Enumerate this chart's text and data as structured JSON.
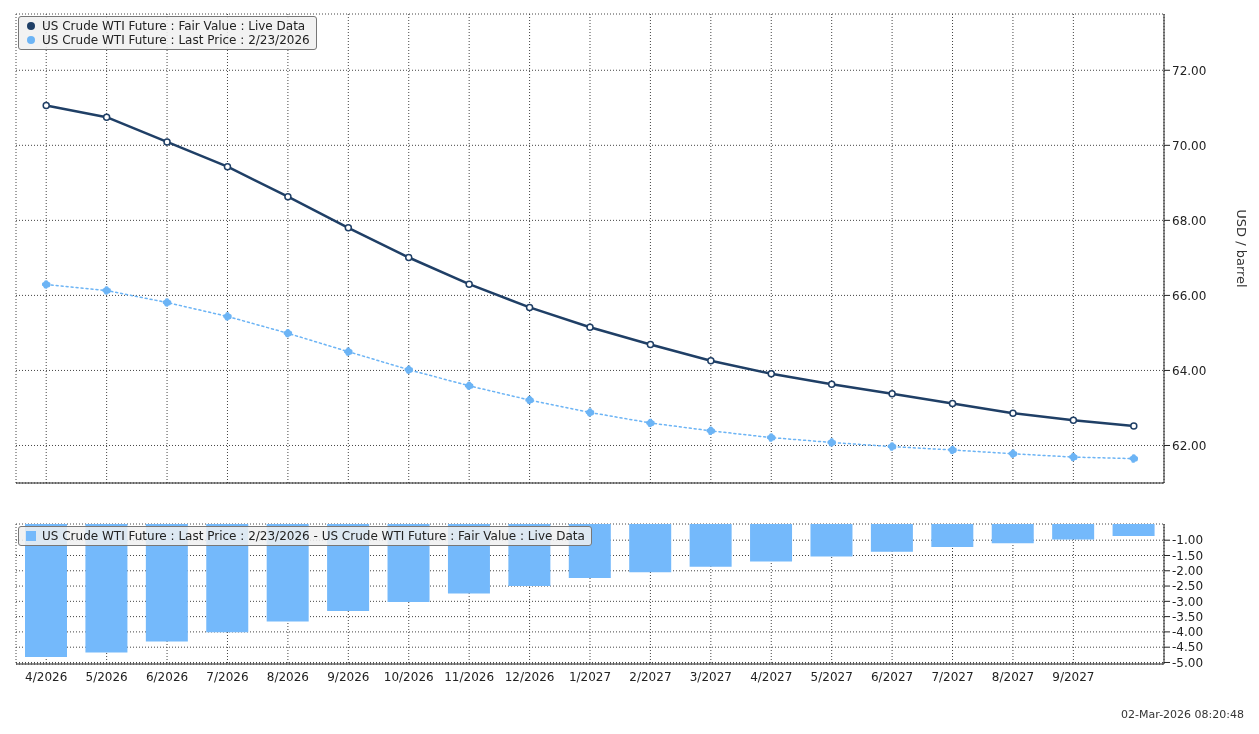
{
  "chart_data": [
    {
      "type": "line",
      "ylabel": "USD / barrel",
      "categories": [
        "4/2026",
        "5/2026",
        "6/2026",
        "7/2026",
        "8/2026",
        "9/2026",
        "10/2026",
        "11/2026",
        "12/2026",
        "1/2027",
        "2/2027",
        "3/2027",
        "4/2027",
        "5/2027",
        "6/2027",
        "7/2027",
        "8/2027",
        "9/2027",
        null
      ],
      "series": [
        {
          "name": "US Crude WTI Future : Fair Value : Live Data",
          "color": "#1f3f66",
          "line_style": "solid",
          "values": [
            71.06,
            70.75,
            70.09,
            69.43,
            68.63,
            67.8,
            67.01,
            66.3,
            65.68,
            65.15,
            64.69,
            64.26,
            63.91,
            63.63,
            63.38,
            63.12,
            62.86,
            62.67,
            62.52
          ]
        },
        {
          "name": "US Crude WTI Future : Last Price : 2/23/2026",
          "color": "#6cb4f5",
          "line_style": "dotted",
          "values": [
            66.29,
            66.13,
            65.81,
            65.44,
            64.99,
            64.5,
            64.02,
            63.59,
            63.21,
            62.88,
            62.6,
            62.39,
            62.21,
            62.08,
            61.97,
            61.88,
            61.78,
            61.69,
            61.65
          ]
        }
      ],
      "ylim": [
        61,
        73.5
      ],
      "yticks": [
        {
          "value": 62,
          "label": "62.00"
        },
        {
          "value": 64,
          "label": "64.00"
        },
        {
          "value": 66,
          "label": "66.00"
        },
        {
          "value": 68,
          "label": "68.00"
        },
        {
          "value": 70,
          "label": "70.00"
        },
        {
          "value": 72,
          "label": "72.00"
        }
      ],
      "grid": true,
      "legend": "top left",
      "marker": "circle",
      "tick_labels": "y"
    },
    {
      "type": "bar",
      "categories": [
        "4/2026",
        "5/2026",
        "6/2026",
        "7/2026",
        "8/2026",
        "9/2026",
        "10/2026",
        "11/2026",
        "12/2026",
        "1/2027",
        "2/2027",
        "3/2027",
        "4/2027",
        "5/2027",
        "6/2027",
        "7/2027",
        "8/2027",
        "9/2027",
        null
      ],
      "series": [
        {
          "name": "US Crude WTI Future : Last Price : 2/23/2026 - US Crude WTI Future : Fair Value : Live Data",
          "color": "#74b9fb",
          "values": [
            -4.82,
            -4.67,
            -4.31,
            -4.01,
            -3.66,
            -3.32,
            -3.02,
            -2.74,
            -2.5,
            -2.24,
            -2.05,
            -1.87,
            -1.7,
            -1.53,
            -1.38,
            -1.22,
            -1.1,
            -0.98,
            -0.86
          ]
        }
      ],
      "ylim": [
        -5.05,
        -0.47
      ],
      "yticks": [
        {
          "value": -1,
          "label": "-1.00"
        },
        {
          "value": -1.5,
          "label": "-1.50"
        },
        {
          "value": -2,
          "label": "-2.00"
        },
        {
          "value": -2.5,
          "label": "-2.50"
        },
        {
          "value": -3,
          "label": "-3.00"
        },
        {
          "value": -3.5,
          "label": "-3.50"
        },
        {
          "value": -4,
          "label": "-4.00"
        },
        {
          "value": -4.5,
          "label": "-4.50"
        },
        {
          "value": -5,
          "label": "-5.00"
        }
      ],
      "grid": true,
      "legend": "top left",
      "annotations": [
        "02-Mar-2026 08:20:48"
      ]
    }
  ]
}
